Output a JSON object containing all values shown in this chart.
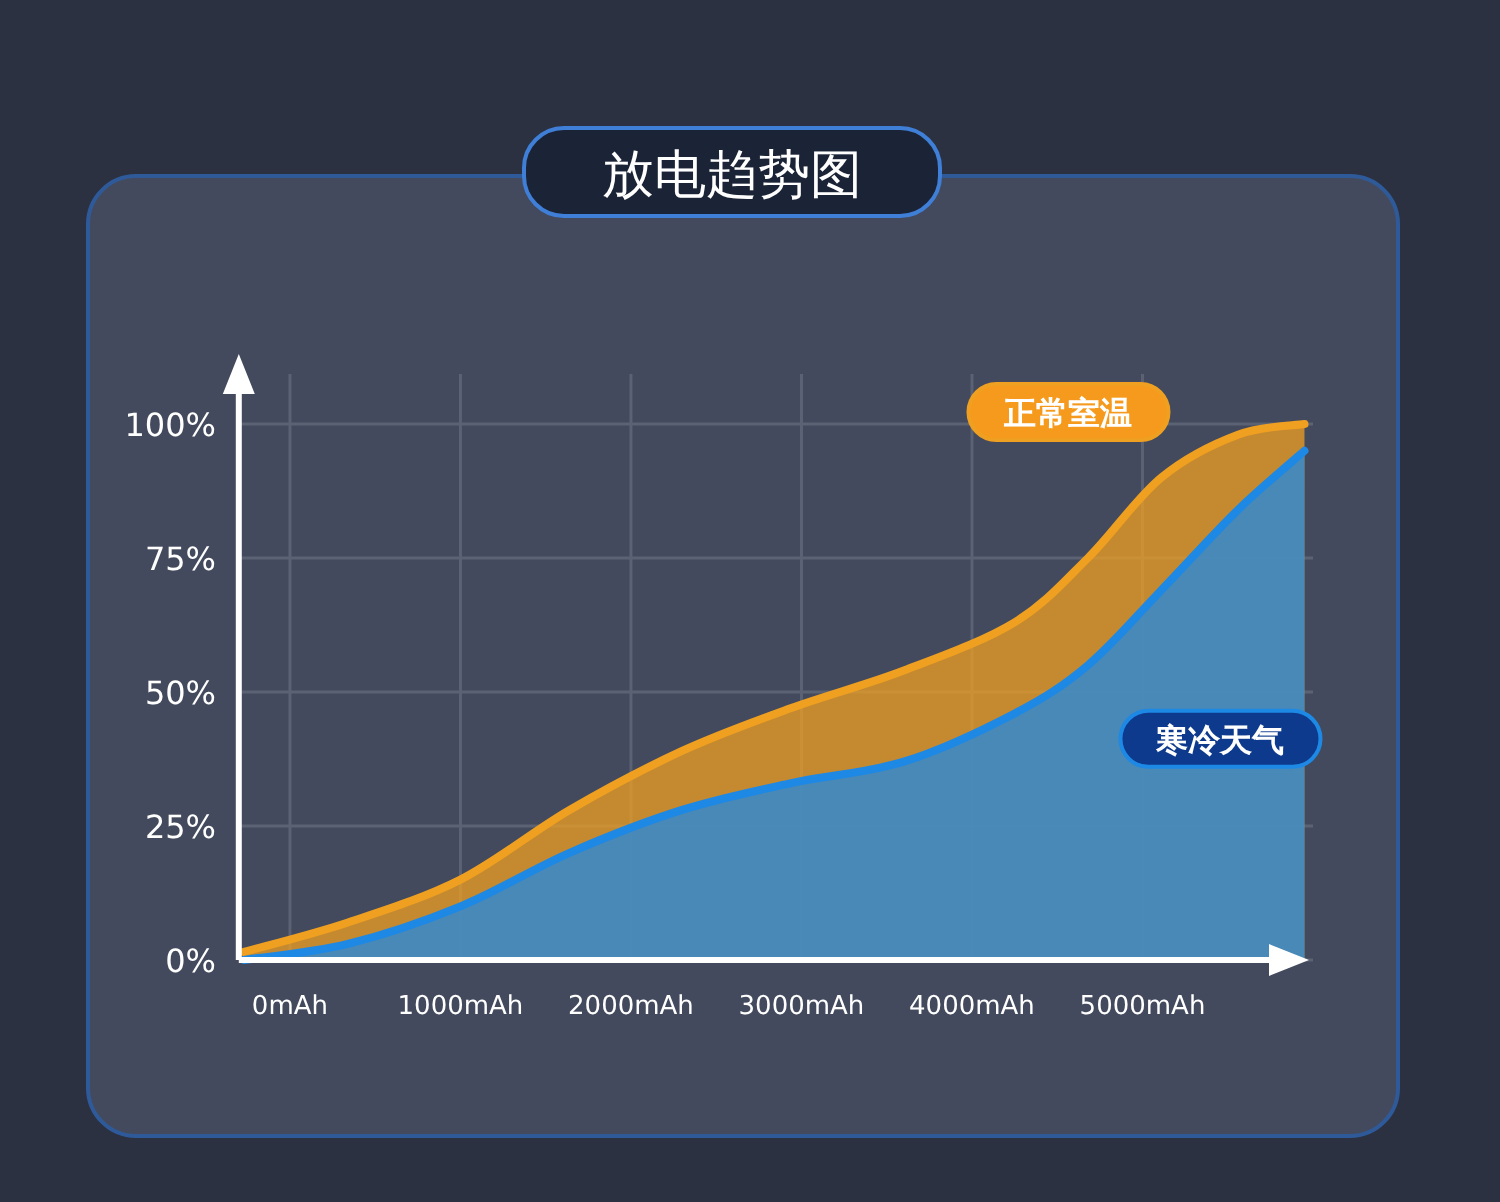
{
  "chart_data": {
    "type": "area",
    "title": "放电趋势图",
    "x": [
      -270,
      340,
      1000,
      1640,
      2300,
      2940,
      3600,
      4250,
      4680,
      5110,
      5560,
      5950
    ],
    "series": [
      {
        "name": "正常室温",
        "color": "#f0a020",
        "values": [
          1.5,
          7,
          15,
          28,
          39,
          47,
          54,
          63,
          75,
          90,
          98,
          100
        ]
      },
      {
        "name": "寒冷天气",
        "color": "#1e88e5",
        "values": [
          0,
          3,
          10,
          20,
          28,
          33,
          37,
          46,
          55,
          69,
          84,
          95
        ]
      }
    ],
    "xlim": [
      -300,
      6000
    ],
    "xticks": [
      {
        "value": 0,
        "label": "0mAh"
      },
      {
        "value": 1000,
        "label": "1000mAh"
      },
      {
        "value": 2000,
        "label": "2000mAh"
      },
      {
        "value": 3000,
        "label": "3000mAh"
      },
      {
        "value": 4000,
        "label": "4000mAh"
      },
      {
        "value": 5000,
        "label": "5000mAh"
      }
    ],
    "ylim": [
      0,
      100
    ],
    "yticks": [
      {
        "value": 0,
        "label": "0%"
      },
      {
        "value": 25,
        "label": "25%"
      },
      {
        "value": 50,
        "label": "50%"
      },
      {
        "value": 75,
        "label": "75%"
      },
      {
        "value": 100,
        "label": "100%"
      }
    ],
    "grid": true,
    "legend": false
  }
}
